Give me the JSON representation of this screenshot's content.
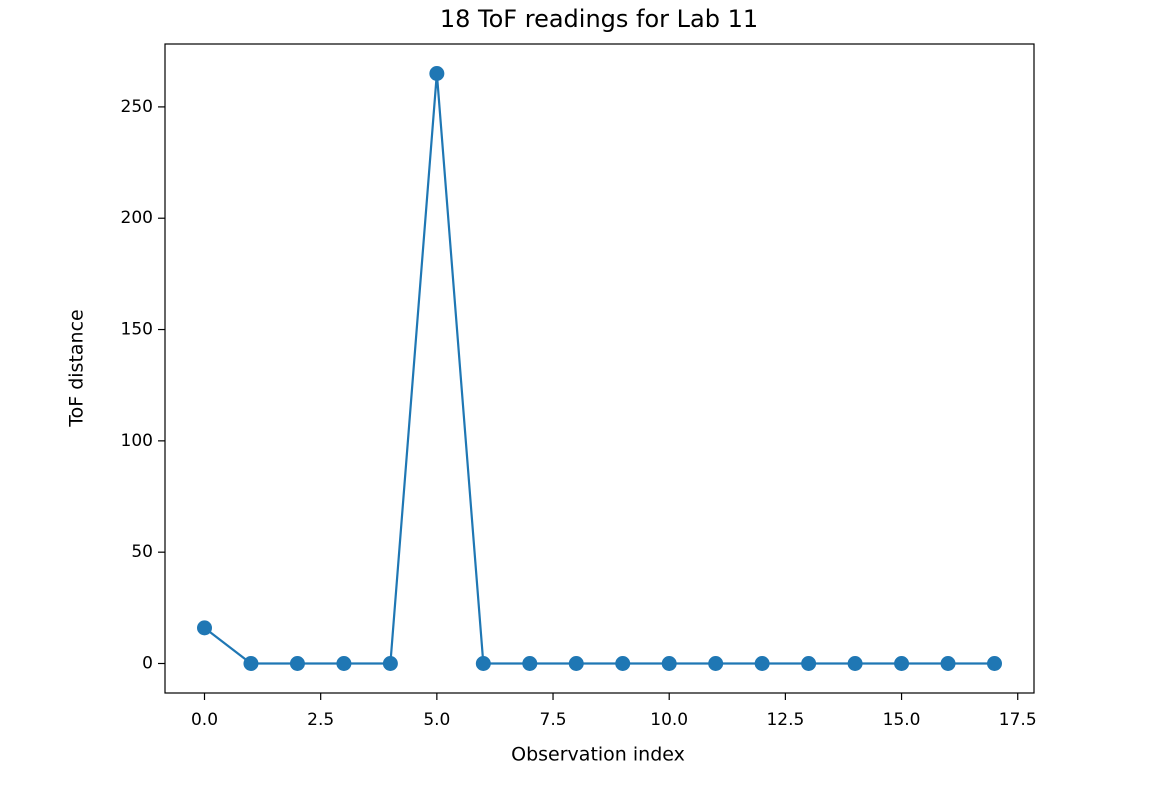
{
  "chart_data": {
    "type": "line",
    "title": "18 ToF readings for Lab 11",
    "x_label": "Observation index",
    "y_label": "ToF distance",
    "x": [
      0,
      1,
      2,
      3,
      4,
      5,
      6,
      7,
      8,
      9,
      10,
      11,
      12,
      13,
      14,
      15,
      16,
      17
    ],
    "values": [
      16,
      0,
      0,
      0,
      0,
      265,
      0,
      0,
      0,
      0,
      0,
      0,
      0,
      0,
      0,
      0,
      0,
      0
    ],
    "color": "#1f77b4",
    "marker": "circle",
    "xlim": [
      -0.85,
      17.85
    ],
    "xticks": [
      {
        "value": 0,
        "label": "0.0"
      },
      2.5,
      {
        "value": 5,
        "label": "5.0"
      },
      7.5,
      {
        "value": 10,
        "label": "10.0"
      },
      12.5,
      {
        "value": 15,
        "label": "15.0"
      },
      17.5
    ],
    "ylim": [
      -13.25,
      278.25
    ],
    "yticks": [
      0,
      50,
      100,
      150,
      200,
      250
    ],
    "grid": false
  }
}
